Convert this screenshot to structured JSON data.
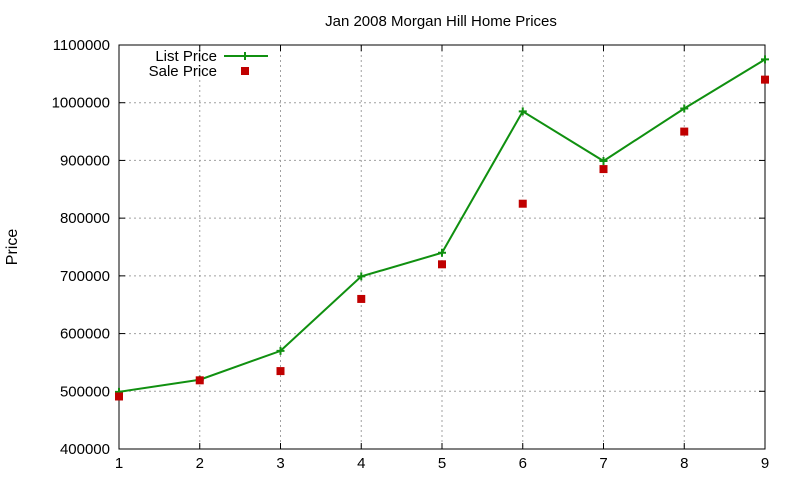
{
  "chart_data": {
    "type": "line",
    "title": "Jan 2008 Morgan Hill Home Prices",
    "xlabel": "",
    "ylabel": "Price",
    "x": [
      1,
      2,
      3,
      4,
      5,
      6,
      7,
      8,
      9
    ],
    "xlim": [
      1,
      9
    ],
    "ylim": [
      400000,
      1100000
    ],
    "xticks": [
      "1",
      "2",
      "3",
      "4",
      "5",
      "6",
      "7",
      "8",
      "9"
    ],
    "yticks": [
      "400000",
      "500000",
      "600000",
      "700000",
      "800000",
      "900000",
      "1000000",
      "1100000"
    ],
    "grid": true,
    "legend_position": "top-left",
    "series": [
      {
        "name": "List Price",
        "style": "line-with-plus-markers",
        "color": "#109010",
        "values": [
          499000,
          520000,
          570000,
          699000,
          740000,
          985000,
          899000,
          990000,
          1075000
        ]
      },
      {
        "name": "Sale Price",
        "style": "square-markers",
        "color": "#c00000",
        "values": [
          491000,
          519000,
          535000,
          660000,
          720000,
          825000,
          885000,
          950000,
          1040000
        ]
      }
    ]
  }
}
